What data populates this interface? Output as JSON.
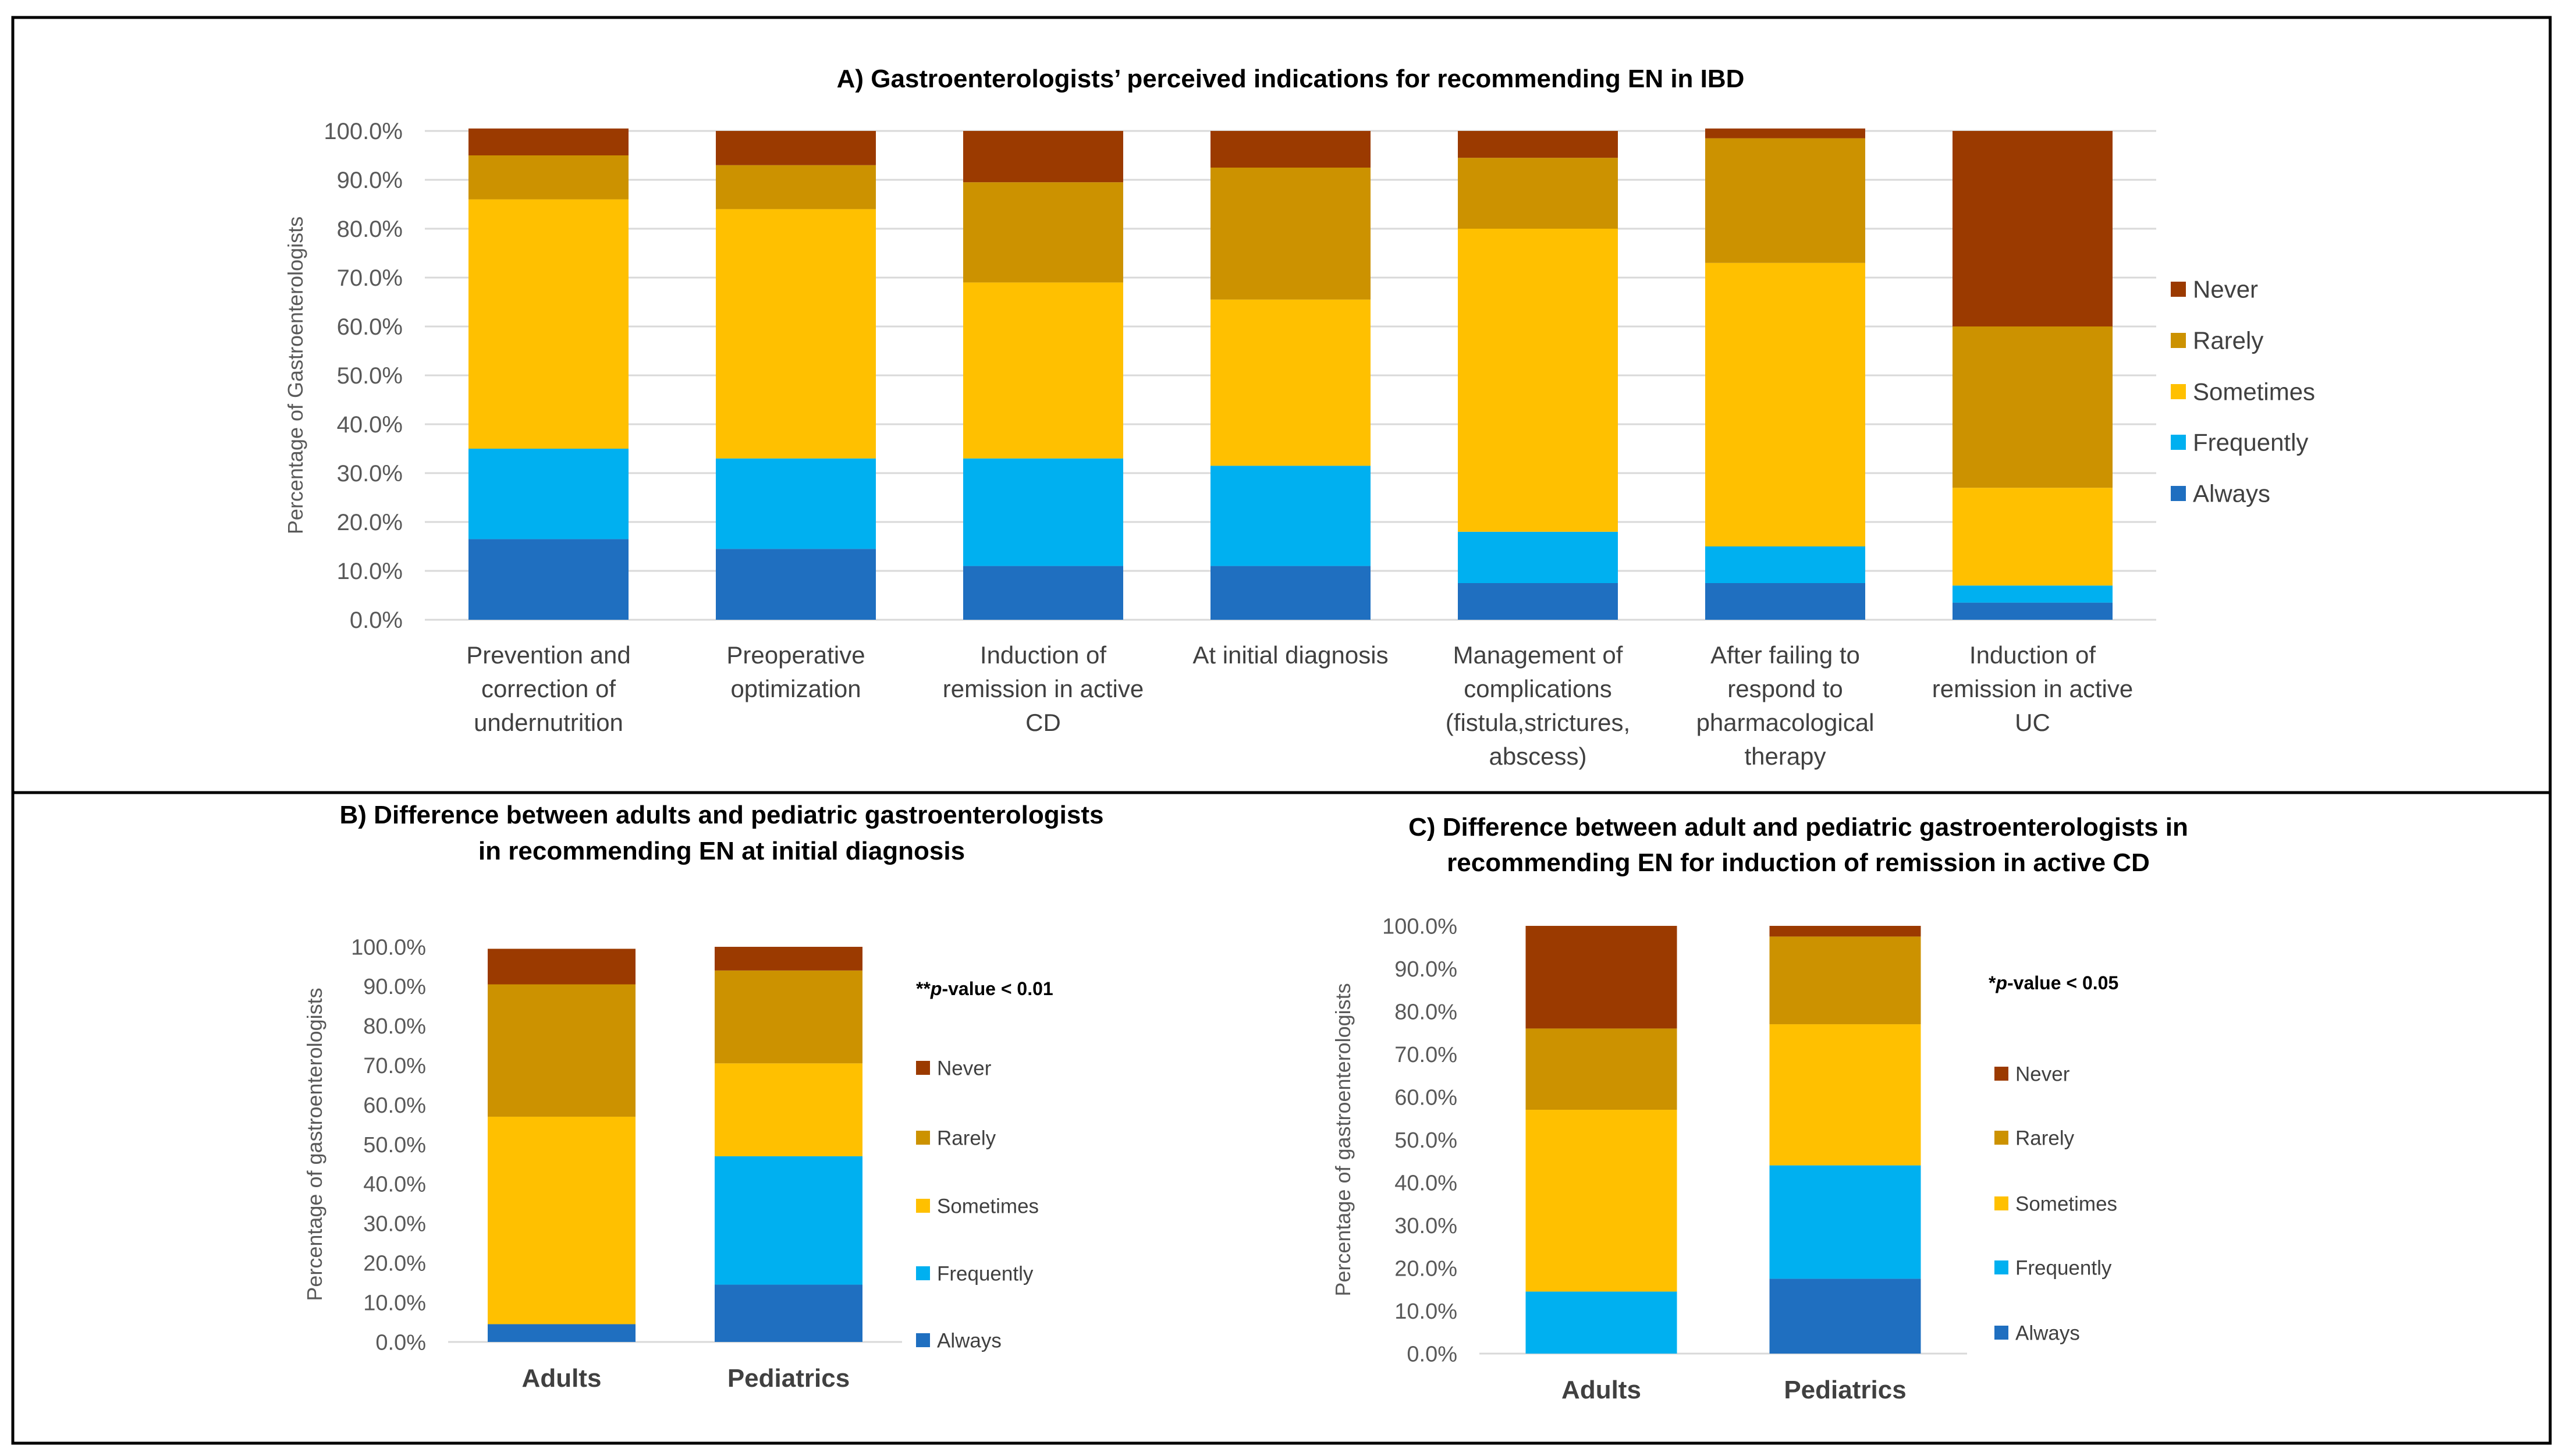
{
  "colors": {
    "Never": "#9b3a00",
    "Rarely": "#cc9200",
    "Sometimes": "#ffc000",
    "Frequently": "#00b0f0",
    "Always": "#1f6fc0",
    "grid": "#d9d9d9",
    "frame": "#000000"
  },
  "chart_data": [
    {
      "id": "A",
      "type": "bar",
      "stacked": true,
      "title": "A) Gastroenterologists’ perceived indications for recommending EN in IBD",
      "xlabel": "",
      "ylabel": "Percentage of Gastroenterologists",
      "ylim": [
        0,
        100
      ],
      "yticks": [
        "0.0%",
        "10.0%",
        "20.0%",
        "30.0%",
        "40.0%",
        "50.0%",
        "60.0%",
        "70.0%",
        "80.0%",
        "90.0%",
        "100.0%"
      ],
      "grid": true,
      "legend_position": "right",
      "legend_order": [
        "Never",
        "Rarely",
        "Sometimes",
        "Frequently",
        "Always"
      ],
      "categories": [
        [
          "Prevention and",
          "correction of",
          "undernutrition"
        ],
        [
          "Preoperative",
          "optimization"
        ],
        [
          "Induction of",
          "remission in active",
          "CD"
        ],
        [
          "At initial diagnosis"
        ],
        [
          "Management of",
          "complications",
          "(fistula,strictures,",
          "abscess)"
        ],
        [
          "After failing to",
          "respond to",
          "pharmacological",
          "therapy"
        ],
        [
          "Induction of",
          "remission in active",
          "UC"
        ]
      ],
      "series": [
        {
          "name": "Always",
          "values": [
            16.5,
            14.5,
            11,
            11,
            7.5,
            7.5,
            3.5
          ]
        },
        {
          "name": "Frequently",
          "values": [
            18.5,
            18.5,
            22,
            20.5,
            10.5,
            7.5,
            3.5
          ]
        },
        {
          "name": "Sometimes",
          "values": [
            51,
            51,
            36,
            34,
            62,
            58,
            20
          ]
        },
        {
          "name": "Rarely",
          "values": [
            9,
            9,
            20.5,
            27,
            14.5,
            25.5,
            33
          ]
        },
        {
          "name": "Never",
          "values": [
            5.5,
            7,
            10.5,
            7.5,
            5.5,
            2,
            40
          ]
        }
      ]
    },
    {
      "id": "B",
      "type": "bar",
      "stacked": true,
      "title": [
        "B) Difference between adults and pediatric gastroenterologists",
        "in recommending EN at initial diagnosis"
      ],
      "xlabel": "",
      "ylabel": "Percentage of gastroenterologists",
      "ylim": [
        0,
        100
      ],
      "yticks": [
        "0.0%",
        "10.0%",
        "20.0%",
        "30.0%",
        "40.0%",
        "50.0%",
        "60.0%",
        "70.0%",
        "80.0%",
        "90.0%",
        "100.0%"
      ],
      "grid": false,
      "annotation": {
        "stars": "**",
        "p": "p",
        "rest": "-value < 0.01"
      },
      "legend_position": "right",
      "legend_order": [
        "Never",
        "Rarely",
        "Sometimes",
        "Frequently",
        "Always"
      ],
      "categories": [
        "Adults",
        "Pediatrics"
      ],
      "series": [
        {
          "name": "Always",
          "values": [
            4.5,
            14.5
          ]
        },
        {
          "name": "Frequently",
          "values": [
            0,
            32.5
          ]
        },
        {
          "name": "Sometimes",
          "values": [
            52.5,
            23.5
          ]
        },
        {
          "name": "Rarely",
          "values": [
            33.5,
            23.5
          ]
        },
        {
          "name": "Never",
          "values": [
            9,
            6
          ]
        }
      ]
    },
    {
      "id": "C",
      "type": "bar",
      "stacked": true,
      "title": [
        "C) Difference between adult and pediatric gastroenterologists in",
        "recommending EN for induction of remission in active CD"
      ],
      "xlabel": "",
      "ylabel": "Percentage of gastroenterologists",
      "ylim": [
        0,
        100
      ],
      "yticks": [
        "0.0%",
        "10.0%",
        "20.0%",
        "30.0%",
        "40.0%",
        "50.0%",
        "60.0%",
        "70.0%",
        "80.0%",
        "90.0%",
        "100.0%"
      ],
      "grid": false,
      "annotation": {
        "stars": "*",
        "p": "p",
        "rest": "-value < 0.05"
      },
      "legend_position": "right",
      "legend_order": [
        "Never",
        "Rarely",
        "Sometimes",
        "Frequently",
        "Always"
      ],
      "categories": [
        "Adults",
        "Pediatrics"
      ],
      "series": [
        {
          "name": "Always",
          "values": [
            0,
            17.5
          ]
        },
        {
          "name": "Frequently",
          "values": [
            14.5,
            26.5
          ]
        },
        {
          "name": "Sometimes",
          "values": [
            42.5,
            33
          ]
        },
        {
          "name": "Rarely",
          "values": [
            19,
            20.5
          ]
        },
        {
          "name": "Never",
          "values": [
            24,
            2.5
          ]
        }
      ]
    }
  ]
}
